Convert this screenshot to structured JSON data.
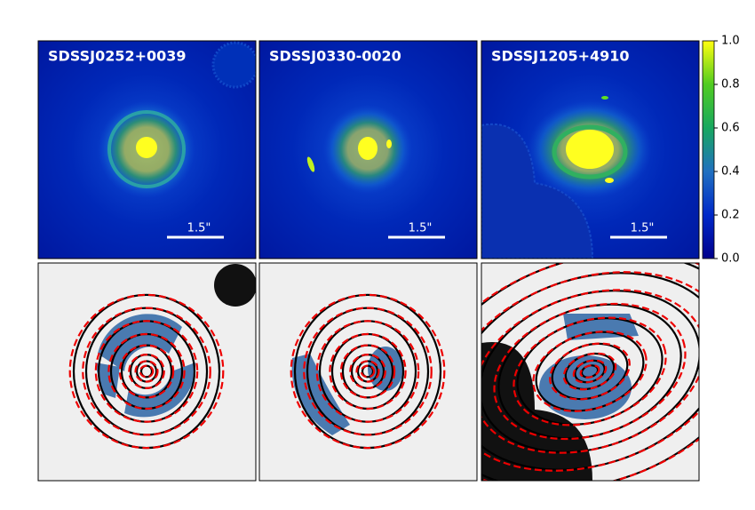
{
  "panels": [
    {
      "name": "SDSSJ0252+0039",
      "scale_label": "1.5\""
    },
    {
      "name": "SDSSJ0330-0020",
      "scale_label": "1.5\""
    },
    {
      "name": "SDSSJ1205+4910",
      "scale_label": "1.5\""
    }
  ],
  "colorbar": {
    "lim": [
      0,
      1
    ],
    "ticks": [
      {
        "value": 0,
        "label": "0.0"
      },
      {
        "value": 0.2,
        "label": "0.2"
      },
      {
        "value": 0.4,
        "label": "0.4"
      },
      {
        "value": 0.6,
        "label": "0.6"
      },
      {
        "value": 0.8,
        "label": "0.8"
      },
      {
        "value": 1,
        "label": "1.0"
      }
    ]
  }
}
